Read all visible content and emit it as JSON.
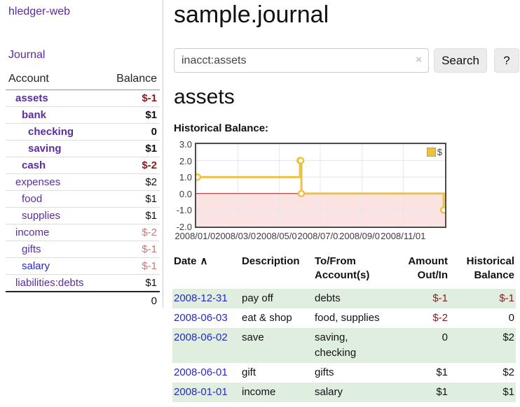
{
  "app": {
    "brand": "hledger-web"
  },
  "colors": {
    "link_purple": "#5b2d9e",
    "link_blue": "#2727cc",
    "negative_strong": "#8b1a1a",
    "negative_soft": "#bd7b7b",
    "row_stripe_green": "#dfeede",
    "chart_line_gold": "#edc240",
    "chart_negative_region": "#fbe3e3",
    "chart_zero_line": "#9e1a1a",
    "chart_grid": "#e6e6e6"
  },
  "sidebar": {
    "journal_link": "Journal",
    "table": {
      "headers": {
        "account": "Account",
        "balance": "Balance"
      },
      "rows": [
        {
          "name": "assets",
          "balance": "$-1",
          "indent": 0,
          "bold": true,
          "blue": false
        },
        {
          "name": "bank",
          "balance": "$1",
          "indent": 1,
          "bold": true,
          "blue": false
        },
        {
          "name": "checking",
          "balance": "0",
          "indent": 2,
          "bold": true,
          "blue": false
        },
        {
          "name": "saving",
          "balance": "$1",
          "indent": 2,
          "bold": true,
          "blue": false
        },
        {
          "name": "cash",
          "balance": "$-2",
          "indent": 1,
          "bold": true,
          "blue": false
        },
        {
          "name": "expenses",
          "balance": "$2",
          "indent": 0,
          "bold": false,
          "blue": false
        },
        {
          "name": "food",
          "balance": "$1",
          "indent": 1,
          "bold": false,
          "blue": false
        },
        {
          "name": "supplies",
          "balance": "$1",
          "indent": 1,
          "bold": false,
          "blue": false
        },
        {
          "name": "income",
          "balance": "$-2",
          "indent": 0,
          "bold": false,
          "blue": false
        },
        {
          "name": "gifts",
          "balance": "$-1",
          "indent": 1,
          "bold": false,
          "blue": false
        },
        {
          "name": "salary",
          "balance": "$-1",
          "indent": 1,
          "bold": false,
          "blue": true
        },
        {
          "name": "liabilities:debts",
          "balance": "$1",
          "indent": 0,
          "bold": false,
          "blue": false
        }
      ],
      "total": "0"
    }
  },
  "main": {
    "title": "sample.journal",
    "search": {
      "value": "inacct:assets",
      "clear_icon": "×",
      "button_label": "Search",
      "help_label": "?"
    },
    "account_heading": "assets",
    "chart_label": "Historical Balance:"
  },
  "chart_data": {
    "type": "line",
    "step": true,
    "title": "Historical Balance",
    "x_range": [
      "2008-01-01",
      "2008-12-31"
    ],
    "ylim": [
      -2,
      3
    ],
    "y_ticks": [
      "3.0",
      "2.0",
      "1.0",
      "0.0",
      "-1.0",
      "-2.0"
    ],
    "x_ticks": [
      {
        "label": "2008/01/01",
        "date": "2008-01-01"
      },
      {
        "label": "2008/03/01",
        "date": "2008-03-01"
      },
      {
        "label": "2008/05/01",
        "date": "2008-05-01"
      },
      {
        "label": "2008/07/01",
        "date": "2008-07-01"
      },
      {
        "label": "2008/09/01",
        "date": "2008-09-01"
      },
      {
        "label": "2008/11/01",
        "date": "2008-11-01"
      }
    ],
    "series": [
      {
        "name": "$",
        "color": "#edc240",
        "points": [
          [
            "2008-01-01",
            1
          ],
          [
            "2008-06-01",
            2
          ],
          [
            "2008-06-02",
            2
          ],
          [
            "2008-06-03",
            0
          ],
          [
            "2008-12-31",
            -1
          ]
        ]
      }
    ],
    "negative_region": {
      "from": 0,
      "to": -2,
      "color": "#fbe3e3"
    },
    "grid": true,
    "legend": {
      "label": "$",
      "position": "top-right"
    }
  },
  "register": {
    "headers": {
      "date": "Date",
      "sort_icon": "∧",
      "description": "Description",
      "accounts_line1": "To/From",
      "accounts_line2": "Account(s)",
      "amount_line1": "Amount",
      "amount_line2": "Out/In",
      "balance_line1": "Historical",
      "balance_line2": "Balance"
    },
    "rows": [
      {
        "date": "2008-12-31",
        "description": "pay off",
        "accounts": "debts",
        "amount": "$-1",
        "balance": "$-1"
      },
      {
        "date": "2008-06-03",
        "description": "eat & shop",
        "accounts": "food, supplies",
        "amount": "$-2",
        "balance": "0"
      },
      {
        "date": "2008-06-02",
        "description": "save",
        "accounts": "saving, checking",
        "amount": "0",
        "balance": "$2"
      },
      {
        "date": "2008-06-01",
        "description": "gift",
        "accounts": "gifts",
        "amount": "$1",
        "balance": "$2"
      },
      {
        "date": "2008-01-01",
        "description": "income",
        "accounts": "salary",
        "amount": "$1",
        "balance": "$1"
      }
    ]
  }
}
